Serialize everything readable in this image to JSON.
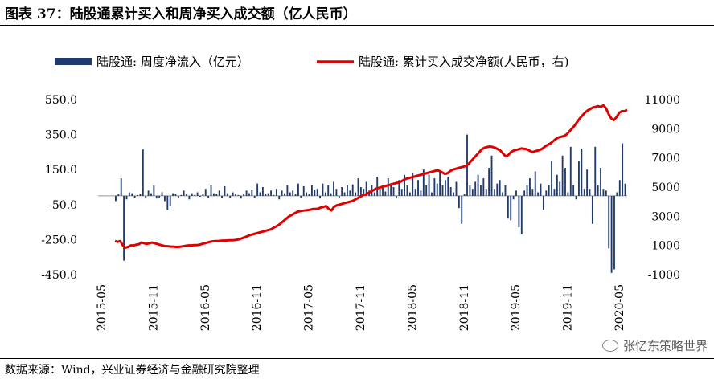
{
  "figure": {
    "title": "图表 37：陆股通累计买入和周净买入成交额（亿人民币）",
    "source": "数据来源：Wind，兴业证券经济与金融研究院整理",
    "watermark": "张忆东策略世界",
    "watermark_icon": "wechat-icon"
  },
  "chart_data": {
    "type": "bar+line",
    "colors": {
      "bar": "#1f3a6e",
      "line": "#e00000"
    },
    "legend": {
      "placement": "top",
      "entries": [
        "陆股通: 周度净流入（亿元）",
        "陆股通: 累计买入成交净额(人民币，右)"
      ]
    },
    "x_ticks": [
      "2015-05",
      "2015-11",
      "2016-05",
      "2016-11",
      "2017-05",
      "2017-11",
      "2018-05",
      "2018-11",
      "2019-05",
      "2019-11",
      "2020-05"
    ],
    "y_left": {
      "ticks": [
        "550.0",
        "350.0",
        "150.0",
        "-50.0",
        "-250.0",
        "-450.0"
      ],
      "ylim": [
        -450,
        550
      ]
    },
    "y_right": {
      "ticks": [
        "11000",
        "9000",
        "7000",
        "5000",
        "3000",
        "1000",
        "-1000"
      ],
      "ylim": [
        -1000,
        11000
      ]
    },
    "grid": false,
    "series": [
      {
        "name": "陆股通: 周度净流入（亿元）",
        "kind": "bar",
        "axis": "left",
        "values": [
          -30,
          10,
          100,
          -370,
          -20,
          20,
          15,
          -10,
          5,
          10,
          265,
          -10,
          30,
          15,
          60,
          -15,
          -10,
          20,
          -30,
          -80,
          -60,
          15,
          10,
          -10,
          5,
          30,
          10,
          -20,
          15,
          5,
          20,
          -5,
          10,
          40,
          -10,
          60,
          15,
          10,
          30,
          -10,
          55,
          15,
          -10,
          20,
          10,
          5,
          -15,
          10,
          30,
          15,
          35,
          -10,
          70,
          20,
          50,
          10,
          15,
          30,
          5,
          40,
          -20,
          30,
          15,
          60,
          20,
          30,
          10,
          70,
          -10,
          55,
          20,
          10,
          60,
          35,
          40,
          -15,
          70,
          20,
          60,
          15,
          80,
          40,
          -10,
          50,
          20,
          60,
          30,
          65,
          20,
          100,
          50,
          40,
          80,
          30,
          60,
          20,
          110,
          40,
          60,
          25,
          100,
          70,
          50,
          -15,
          90,
          40,
          120,
          60,
          20,
          130,
          40,
          90,
          30,
          150,
          60,
          120,
          20,
          100,
          70,
          140,
          60,
          90,
          110,
          50,
          20,
          80,
          -70,
          -160,
          10,
          350,
          60,
          40,
          80,
          120,
          60,
          100,
          40,
          160,
          230,
          40,
          70,
          90,
          20,
          60,
          -130,
          -140,
          -20,
          30,
          -180,
          -220,
          30,
          60,
          100,
          40,
          140,
          20,
          70,
          -80,
          30,
          60,
          200,
          40,
          120,
          80,
          230,
          160,
          20,
          280,
          60,
          -20,
          200,
          270,
          40,
          150,
          40,
          -160,
          280,
          60,
          160,
          40,
          30,
          -300,
          -440,
          -420,
          20,
          90,
          300,
          70
        ]
      },
      {
        "name": "陆股通: 累计买入成交净额(人民币，右)",
        "kind": "line",
        "axis": "right",
        "values": [
          1300,
          1250,
          1300,
          1000,
          850,
          900,
          1000,
          1000,
          1050,
          1080,
          1200,
          1150,
          1100,
          1150,
          1200,
          1150,
          1100,
          1050,
          1000,
          950,
          950,
          920,
          920,
          900,
          900,
          920,
          950,
          980,
          1000,
          1000,
          1020,
          1020,
          1050,
          1100,
          1150,
          1200,
          1250,
          1280,
          1300,
          1300,
          1320,
          1330,
          1330,
          1350,
          1350,
          1360,
          1380,
          1420,
          1480,
          1550,
          1620,
          1700,
          1750,
          1800,
          1850,
          1900,
          1950,
          2000,
          2050,
          2100,
          2200,
          2300,
          2400,
          2550,
          2700,
          2850,
          3000,
          3100,
          3200,
          3300,
          3350,
          3380,
          3400,
          3420,
          3450,
          3500,
          3500,
          3520,
          3600,
          3650,
          3700,
          3500,
          3400,
          3650,
          3750,
          3800,
          3850,
          3900,
          3950,
          4000,
          4050,
          4150,
          4250,
          4350,
          4450,
          4500,
          4600,
          4700,
          4800,
          4900,
          4950,
          5000,
          5050,
          5100,
          5150,
          5200,
          5250,
          5300,
          5350,
          5450,
          5550,
          5600,
          5650,
          5700,
          5750,
          5800,
          5850,
          5900,
          5950,
          6000,
          6050,
          6100,
          6150,
          6100,
          6000,
          5900,
          5950,
          6100,
          6200,
          6250,
          6300,
          6350,
          6400,
          6450,
          6600,
          6800,
          7000,
          7200,
          7400,
          7600,
          7700,
          7750,
          7780,
          7750,
          7700,
          7600,
          7500,
          7300,
          7100,
          7200,
          7400,
          7500,
          7550,
          7600,
          7650,
          7620,
          7600,
          7500,
          7400,
          7450,
          7500,
          7550,
          7650,
          7800,
          7900,
          8000,
          8150,
          8300,
          8400,
          8450,
          8500,
          8600,
          8800,
          9000,
          9200,
          9450,
          9700,
          9900,
          10100,
          10250,
          10350,
          10450,
          10500,
          10550,
          10500,
          10600,
          10400,
          10000,
          9700,
          9600,
          9800,
          10100,
          10200,
          10200,
          10300
        ]
      }
    ]
  }
}
